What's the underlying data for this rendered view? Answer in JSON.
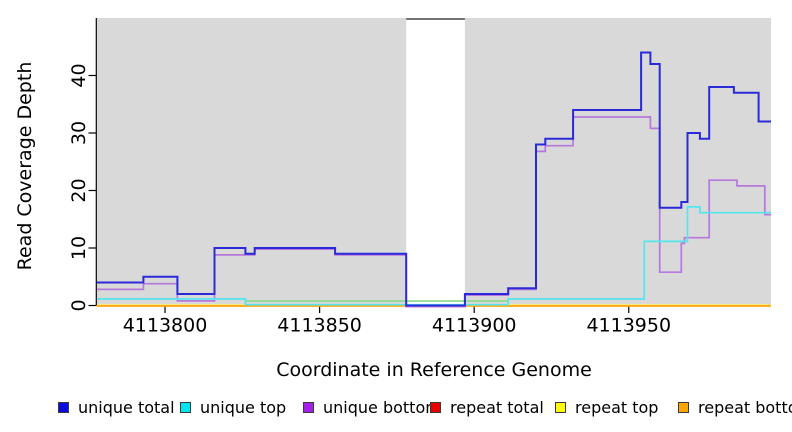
{
  "chart_data": {
    "type": "line",
    "step": true,
    "title": "",
    "xlabel": "Coordinate in Reference Genome",
    "ylabel": "Read Coverage Depth",
    "xlim": [
      4113778,
      4113996
    ],
    "ylim": [
      0,
      50
    ],
    "grid": false,
    "plot_background": "#ffffff",
    "shaded_region_color": "#d9d9d9",
    "shaded_regions": [
      {
        "x0": 4113778,
        "x1": 4113878
      },
      {
        "x0": 4113897,
        "x1": 4113996
      }
    ],
    "x_ticks": [
      {
        "value": 4113800,
        "label": "4113800"
      },
      {
        "value": 4113850,
        "label": "4113850"
      },
      {
        "value": 4113900,
        "label": "4113900"
      },
      {
        "value": 4113950,
        "label": "4113950"
      }
    ],
    "y_ticks": [
      {
        "value": 0,
        "label": "0"
      },
      {
        "value": 10,
        "label": "10"
      },
      {
        "value": 20,
        "label": "20"
      },
      {
        "value": 30,
        "label": "30"
      },
      {
        "value": 40,
        "label": "40"
      }
    ],
    "legend_position": "bottom",
    "legend": [
      {
        "label": "unique total",
        "color": "#0a0ae0"
      },
      {
        "label": "unique top",
        "color": "#00e6f0"
      },
      {
        "label": "unique bottom",
        "color": "#a321e8"
      },
      {
        "label": "repeat total",
        "color": "#e60000"
      },
      {
        "label": "repeat top",
        "color": "#ffff00"
      },
      {
        "label": "repeat bottom",
        "color": "#ffa500"
      }
    ],
    "series": [
      {
        "name": "repeat total",
        "color": "#e60000",
        "in_legend": true,
        "points": [
          [
            4113778,
            0
          ]
        ],
        "x_end": 4113996
      },
      {
        "name": "repeat top",
        "color": "#ffff00",
        "in_legend": true,
        "points": [
          [
            4113778,
            0
          ]
        ],
        "x_end": 4113996
      },
      {
        "name": "repeat bottom",
        "color": "#ffa513",
        "in_legend": true,
        "points": [
          [
            4113778,
            0
          ]
        ],
        "x_end": 4113996
      },
      {
        "name": "baseline-green",
        "color": "#8fd98f",
        "in_legend": false,
        "points": [
          [
            4113826,
            0
          ]
        ],
        "x_end": 4113911
      },
      {
        "name": "unique bottom",
        "color": "#b678dc",
        "in_legend": true,
        "points": [
          [
            4113778,
            3
          ],
          [
            4113793,
            4
          ],
          [
            4113804,
            1
          ],
          [
            4113816,
            9
          ],
          [
            4113829,
            10
          ],
          [
            4113855,
            9
          ],
          [
            4113878,
            0
          ],
          [
            4113897,
            2
          ],
          [
            4113911,
            3
          ],
          [
            4113920,
            27
          ],
          [
            4113923,
            28
          ],
          [
            4113932,
            33
          ],
          [
            4113957,
            31
          ],
          [
            4113960,
            6
          ],
          [
            4113967,
            11
          ],
          [
            4113968,
            12
          ],
          [
            4113976,
            22
          ],
          [
            4113985,
            21
          ],
          [
            4113994,
            16
          ]
        ],
        "x_end": 4113996
      },
      {
        "name": "unique top",
        "color": "#53e6ef",
        "in_legend": true,
        "points": [
          [
            4113778,
            1
          ],
          [
            4113826,
            0
          ],
          [
            4113911,
            1
          ],
          [
            4113955,
            11
          ],
          [
            4113969,
            17
          ],
          [
            4113973,
            16
          ]
        ],
        "x_end": 4113996
      },
      {
        "name": "unique total",
        "color": "#2a2ad8",
        "in_legend": true,
        "points": [
          [
            4113778,
            4
          ],
          [
            4113793,
            5
          ],
          [
            4113804,
            2
          ],
          [
            4113816,
            10
          ],
          [
            4113826,
            9
          ],
          [
            4113829,
            10
          ],
          [
            4113855,
            9
          ],
          [
            4113878,
            0
          ],
          [
            4113897,
            2
          ],
          [
            4113911,
            3
          ],
          [
            4113920,
            28
          ],
          [
            4113923,
            29
          ],
          [
            4113932,
            34
          ],
          [
            4113954,
            44
          ],
          [
            4113957,
            42
          ],
          [
            4113960,
            17
          ],
          [
            4113967,
            18
          ],
          [
            4113969,
            30
          ],
          [
            4113973,
            29
          ],
          [
            4113976,
            38
          ],
          [
            4113984,
            37
          ],
          [
            4113992,
            32
          ]
        ],
        "x_end": 4113996
      }
    ]
  }
}
